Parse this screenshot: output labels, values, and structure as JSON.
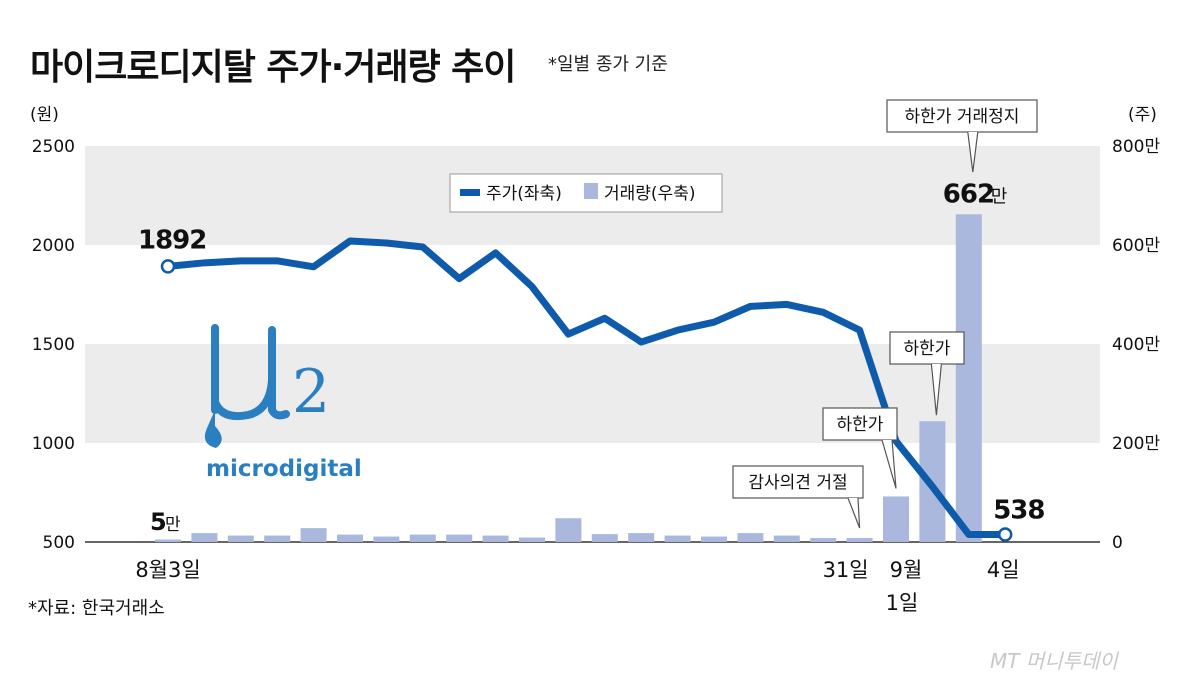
{
  "title": "마이크로디지탈 주가·거래량 추이",
  "subtitle": "*일별 종가 기준",
  "source": "*자료: 한국거래소",
  "watermark": "MT 머니투데이",
  "logo": {
    "symbol": "μ2",
    "text": "microdigital"
  },
  "colors": {
    "price_line": "#0e5bab",
    "volume_bar": "#a9b8dc",
    "band": "#ececec",
    "logo_blue": "#2a7fc1"
  },
  "chart_data": {
    "type": "bar+line",
    "y_left": {
      "label": "(원)",
      "lim": [
        500,
        2500
      ],
      "ticks": [
        "500",
        "1000",
        "1500",
        "2000",
        "2500"
      ]
    },
    "y_right": {
      "label": "(주)",
      "lim": [
        0,
        8000000
      ],
      "ticks": [
        "0",
        "200만",
        "400만",
        "600만",
        "800만"
      ]
    },
    "legend": {
      "price": "주가(좌축)",
      "volume": "거래량(우축)",
      "position": "top-center"
    },
    "x_labels": [
      "8월3일",
      "31일",
      "9월",
      "1일",
      "4일"
    ],
    "series": [
      {
        "name": "주가(좌축)",
        "type": "line",
        "values": [
          1892,
          1910,
          1920,
          1920,
          1890,
          2020,
          2010,
          1990,
          1830,
          1960,
          1790,
          1550,
          1630,
          1510,
          1570,
          1610,
          1690,
          1700,
          1660,
          1570,
          1010,
          780,
          538,
          538
        ]
      },
      {
        "name": "거래량(우축)",
        "type": "bar",
        "values": [
          50000,
          180000,
          130000,
          130000,
          280000,
          150000,
          110000,
          150000,
          150000,
          130000,
          90000,
          480000,
          160000,
          180000,
          130000,
          110000,
          180000,
          130000,
          80000,
          80000,
          920000,
          2440000,
          6620000
        ]
      }
    ],
    "annotations": [
      {
        "label": "1892",
        "target": "price-start"
      },
      {
        "label": "538",
        "target": "price-end"
      },
      {
        "label": "5",
        "unit": "만",
        "target": "volume-start"
      },
      {
        "label": "662",
        "unit": "만",
        "target": "volume-peak"
      },
      {
        "label": "감사의견 거절",
        "target": "volume-19"
      },
      {
        "label": "하한가",
        "target": "volume-20"
      },
      {
        "label": "하한가",
        "target": "volume-21"
      },
      {
        "label": "하한가 거래정지",
        "target": "volume-22"
      }
    ]
  }
}
